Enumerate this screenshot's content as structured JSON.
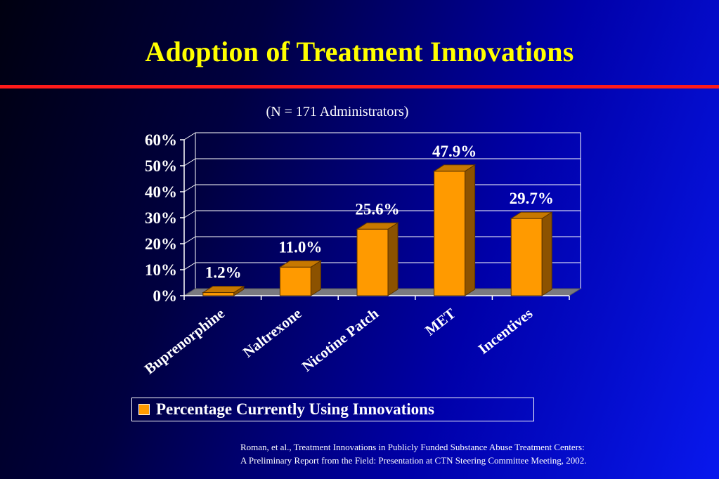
{
  "slide": {
    "title": "Adoption of Treatment Innovations",
    "subtitle": "(N = 171 Administrators)",
    "source_line1": "Roman, et al., Treatment Innovations in Publicly Funded Substance Abuse Treatment Centers:",
    "source_line2": "A Preliminary Report from the  Field: Presentation at CTN Steering Committee Meeting, 2002."
  },
  "colors": {
    "title": "#ffff00",
    "rule": "#ff1a1a",
    "bar_front": "#ff9a00",
    "bar_side": "#8c5200",
    "bar_top": "#c77800",
    "floor": "#7a7a80",
    "grid": "#ffffff",
    "text": "#ffffff"
  },
  "chart_data": {
    "type": "bar",
    "title": "",
    "xlabel": "",
    "ylabel": "",
    "categories": [
      "Buprenorphine",
      "Naltrexone",
      "Nicotine Patch",
      "MET",
      "Incentives"
    ],
    "series": [
      {
        "name": "Percentage Currently Using Innovations",
        "values": [
          1.2,
          11.0,
          25.6,
          47.9,
          29.7
        ],
        "labels": [
          "1.2%",
          "11.0%",
          "25.6%",
          "47.9%",
          "29.7%"
        ]
      }
    ],
    "ylim": [
      0,
      60
    ],
    "yticks": [
      0,
      10,
      20,
      30,
      40,
      50,
      60
    ],
    "ytick_labels": [
      "0%",
      "10%",
      "20%",
      "30%",
      "40%",
      "50%",
      "60%"
    ],
    "grid": true,
    "legend_position": "bottom"
  }
}
